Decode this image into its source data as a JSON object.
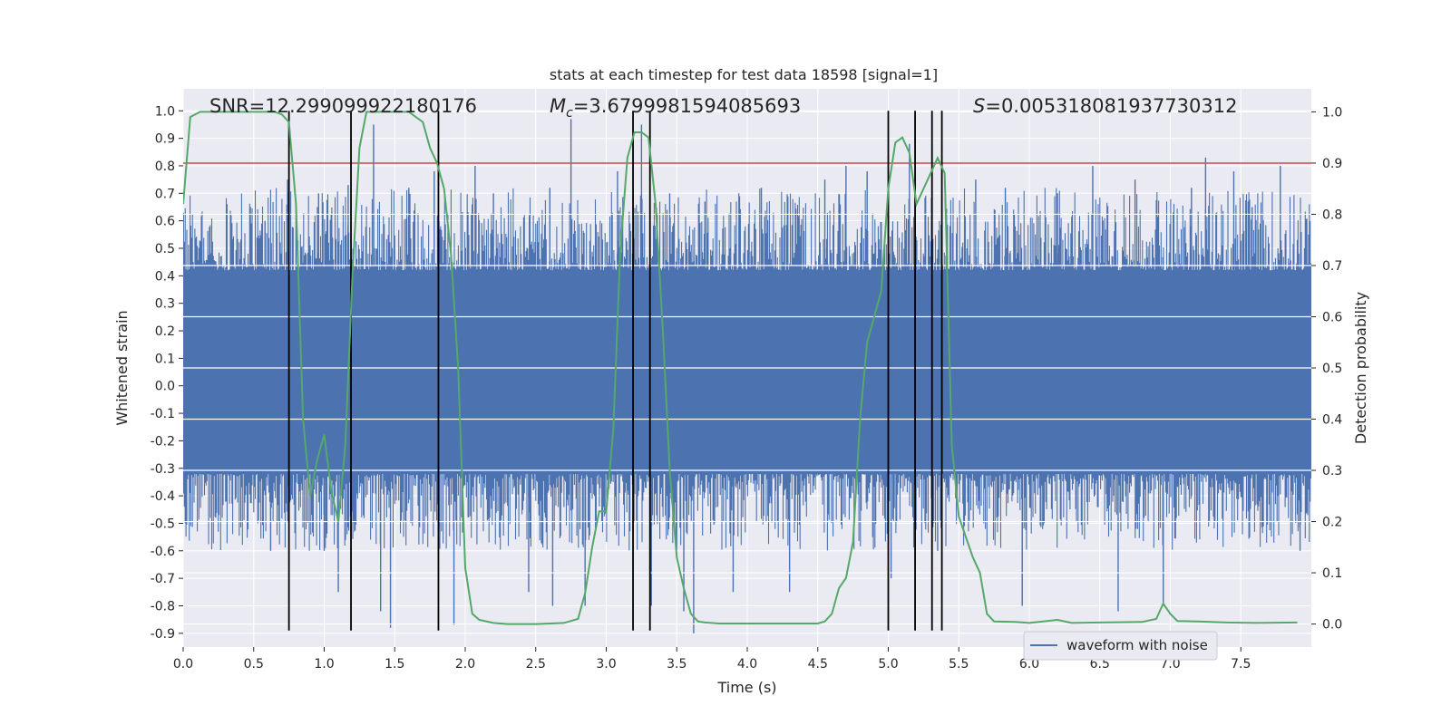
{
  "chart_data": {
    "type": "line",
    "title": "stats at each timestep for test data 18598 [signal=1]",
    "xlabel": "Time (s)",
    "ylabel_left": "Whitened strain",
    "ylabel_right": "Detection probability",
    "xlim": [
      0.0,
      8.0
    ],
    "ylim_left": [
      -0.95,
      1.08
    ],
    "ylim_right": [
      -0.045,
      1.045
    ],
    "x_ticks": [
      0.0,
      0.5,
      1.0,
      1.5,
      2.0,
      2.5,
      3.0,
      3.5,
      4.0,
      4.5,
      5.0,
      5.5,
      6.0,
      6.5,
      7.0,
      7.5
    ],
    "x_tick_labels": [
      "0.0",
      "0.5",
      "1.0",
      "1.5",
      "2.0",
      "2.5",
      "3.0",
      "3.5",
      "4.0",
      "4.5",
      "5.0",
      "5.5",
      "6.0",
      "6.5",
      "7.0",
      "7.5"
    ],
    "y_left_ticks": [
      1.0,
      0.9,
      0.8,
      0.7,
      0.6,
      0.5,
      0.4,
      0.3,
      0.2,
      0.1,
      0.0,
      -0.1,
      -0.2,
      -0.3,
      -0.4,
      -0.5,
      -0.6,
      -0.7,
      -0.8,
      -0.9
    ],
    "y_left_tick_labels": [
      "1.0",
      "0.9",
      "0.8",
      "0.7",
      "0.6",
      "0.5",
      "0.4",
      "0.3",
      "0.2",
      "0.1",
      "0.0",
      "-0.1",
      "-0.2",
      "-0.3",
      "-0.4",
      "-0.5",
      "-0.6",
      "-0.7",
      "-0.8",
      "-0.9"
    ],
    "y_right_ticks": [
      1.0,
      0.9,
      0.8,
      0.7,
      0.6,
      0.5,
      0.4,
      0.3,
      0.2,
      0.1,
      0.0
    ],
    "y_right_tick_labels": [
      "1.0",
      "0.9",
      "0.8",
      "0.7",
      "0.6",
      "0.5",
      "0.4",
      "0.3",
      "0.2",
      "0.1",
      "0.0"
    ],
    "annotations": {
      "snr": "SNR=12.299099922180176",
      "mc_symbol": "M",
      "mc_subscript": "c",
      "mc_value": "=3.6799981594085693",
      "s_symbol": "S",
      "s_value": "=0.005318081937730312"
    },
    "legend": {
      "label": "waveform with noise",
      "location": "lower-right"
    },
    "threshold": {
      "value": 0.9,
      "axis": "right",
      "color": "#c44e52"
    },
    "trigger_lines": {
      "x": [
        0.75,
        1.19,
        1.81,
        3.19,
        3.31,
        5.0,
        5.19,
        5.31,
        5.38
      ],
      "y_range": [
        -0.89,
        1.0
      ],
      "color": "#000000"
    },
    "waveform": {
      "name": "waveform with noise",
      "color": "#4c72b0",
      "core_band": [
        -0.32,
        0.42
      ],
      "spikes": [
        {
          "x": 0.58,
          "y": 0.6
        },
        {
          "x": 0.62,
          "y": -0.6
        },
        {
          "x": 0.74,
          "y": 0.75
        },
        {
          "x": 0.8,
          "y": 0.67
        },
        {
          "x": 0.96,
          "y": 0.7
        },
        {
          "x": 1.0,
          "y": -0.6
        },
        {
          "x": 1.1,
          "y": -0.75
        },
        {
          "x": 1.17,
          "y": 0.73
        },
        {
          "x": 1.35,
          "y": 0.95
        },
        {
          "x": 1.4,
          "y": -0.82
        },
        {
          "x": 1.47,
          "y": -0.88
        },
        {
          "x": 1.6,
          "y": 0.72
        },
        {
          "x": 1.78,
          "y": 0.78
        },
        {
          "x": 1.92,
          "y": -0.87
        },
        {
          "x": 2.07,
          "y": 0.8
        },
        {
          "x": 2.2,
          "y": 0.7
        },
        {
          "x": 2.45,
          "y": -0.75
        },
        {
          "x": 2.6,
          "y": 0.72
        },
        {
          "x": 2.62,
          "y": -0.8
        },
        {
          "x": 2.75,
          "y": 0.97
        },
        {
          "x": 2.85,
          "y": -0.8
        },
        {
          "x": 3.08,
          "y": 0.78
        },
        {
          "x": 3.25,
          "y": 0.95
        },
        {
          "x": 3.32,
          "y": -0.8
        },
        {
          "x": 3.45,
          "y": 0.7
        },
        {
          "x": 3.55,
          "y": -0.82
        },
        {
          "x": 3.62,
          "y": -0.9
        },
        {
          "x": 3.7,
          "y": 0.67
        },
        {
          "x": 3.9,
          "y": -0.75
        },
        {
          "x": 4.1,
          "y": 0.72
        },
        {
          "x": 4.3,
          "y": -0.75
        },
        {
          "x": 4.55,
          "y": 0.75
        },
        {
          "x": 4.7,
          "y": 0.8
        },
        {
          "x": 4.85,
          "y": 0.78
        },
        {
          "x": 5.02,
          "y": -0.7
        },
        {
          "x": 5.15,
          "y": 0.88
        },
        {
          "x": 5.35,
          "y": -0.6
        },
        {
          "x": 5.62,
          "y": 0.75
        },
        {
          "x": 5.83,
          "y": 0.72
        },
        {
          "x": 5.95,
          "y": -0.8
        },
        {
          "x": 6.2,
          "y": 0.7
        },
        {
          "x": 6.45,
          "y": 0.8
        },
        {
          "x": 6.63,
          "y": -0.82
        },
        {
          "x": 6.75,
          "y": 0.75
        },
        {
          "x": 6.95,
          "y": -0.8
        },
        {
          "x": 7.15,
          "y": 0.72
        },
        {
          "x": 7.25,
          "y": 0.83
        },
        {
          "x": 7.45,
          "y": 0.78
        },
        {
          "x": 7.58,
          "y": 0.65
        },
        {
          "x": 7.78,
          "y": 0.8
        },
        {
          "x": 7.92,
          "y": -0.6
        }
      ]
    },
    "detection_probability": {
      "color": "#55a868",
      "x": [
        0.0,
        0.05,
        0.12,
        0.2,
        0.35,
        0.5,
        0.65,
        0.7,
        0.75,
        0.8,
        0.85,
        0.9,
        0.95,
        1.0,
        1.05,
        1.1,
        1.15,
        1.2,
        1.25,
        1.3,
        1.35,
        1.45,
        1.6,
        1.7,
        1.75,
        1.8,
        1.85,
        1.9,
        1.95,
        2.0,
        2.05,
        2.1,
        2.2,
        2.3,
        2.5,
        2.7,
        2.8,
        2.85,
        2.9,
        2.95,
        3.0,
        3.05,
        3.1,
        3.15,
        3.2,
        3.25,
        3.3,
        3.35,
        3.4,
        3.45,
        3.5,
        3.55,
        3.6,
        3.65,
        3.7,
        3.8,
        4.0,
        4.3,
        4.5,
        4.55,
        4.6,
        4.65,
        4.7,
        4.75,
        4.8,
        4.85,
        4.9,
        4.95,
        5.0,
        5.05,
        5.1,
        5.15,
        5.2,
        5.25,
        5.3,
        5.35,
        5.4,
        5.45,
        5.5,
        5.55,
        5.6,
        5.65,
        5.7,
        5.75,
        5.9,
        6.0,
        6.2,
        6.3,
        6.5,
        6.8,
        6.9,
        6.95,
        7.0,
        7.05,
        7.2,
        7.4,
        7.6,
        7.9
      ],
      "y": [
        0.82,
        0.99,
        1.0,
        1.0,
        1.0,
        1.0,
        1.0,
        0.995,
        0.98,
        0.82,
        0.4,
        0.25,
        0.32,
        0.37,
        0.26,
        0.2,
        0.35,
        0.68,
        0.93,
        1.0,
        1.0,
        1.0,
        1.0,
        0.98,
        0.93,
        0.9,
        0.85,
        0.72,
        0.5,
        0.11,
        0.02,
        0.008,
        0.002,
        0.0,
        0.0,
        0.002,
        0.01,
        0.06,
        0.15,
        0.22,
        0.22,
        0.38,
        0.73,
        0.91,
        0.96,
        0.96,
        0.95,
        0.82,
        0.58,
        0.3,
        0.13,
        0.07,
        0.02,
        0.005,
        0.003,
        0.001,
        0.001,
        0.001,
        0.001,
        0.005,
        0.02,
        0.07,
        0.09,
        0.16,
        0.4,
        0.55,
        0.6,
        0.65,
        0.85,
        0.94,
        0.95,
        0.92,
        0.82,
        0.85,
        0.88,
        0.91,
        0.88,
        0.35,
        0.21,
        0.17,
        0.13,
        0.1,
        0.02,
        0.005,
        0.004,
        0.002,
        0.008,
        0.002,
        0.003,
        0.004,
        0.01,
        0.04,
        0.02,
        0.006,
        0.005,
        0.003,
        0.002,
        0.003
      ]
    }
  }
}
